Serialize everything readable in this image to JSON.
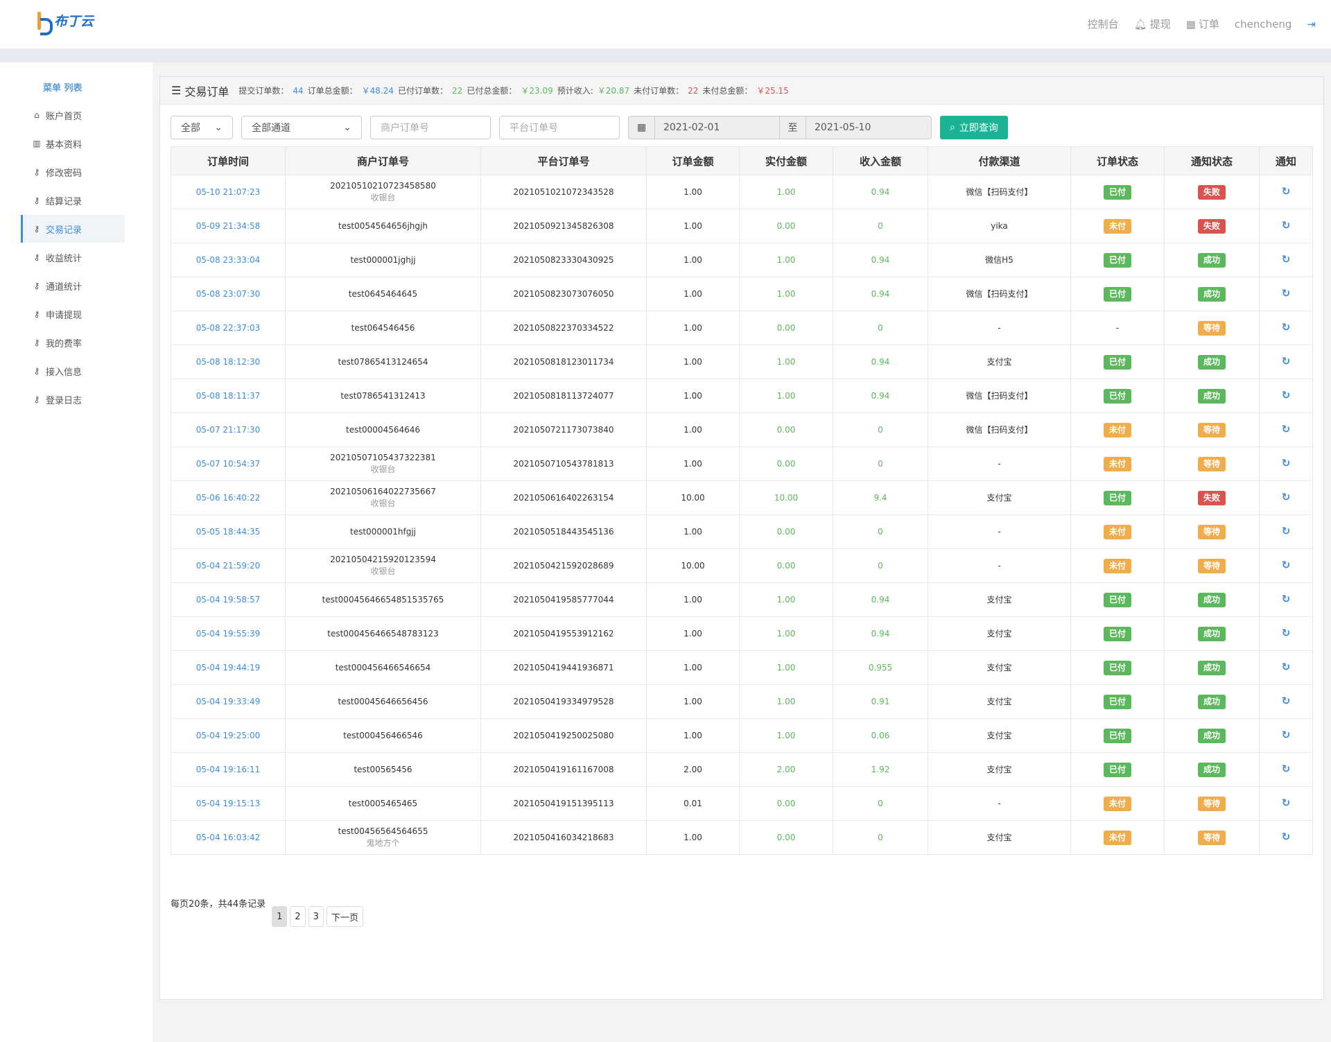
{
  "brand": {
    "name": "布丁云"
  },
  "topnav": [
    {
      "label": "控制台",
      "icon": ""
    },
    {
      "label": "提现",
      "icon": "bell-icon"
    },
    {
      "label": "订单",
      "icon": "calendar-icon"
    },
    {
      "label": "chencheng",
      "icon": ""
    },
    {
      "label": "",
      "icon": "logout-icon"
    }
  ],
  "sidebar": {
    "title": "菜单 列表",
    "items": [
      {
        "label": "账户首页",
        "icon": "home-icon"
      },
      {
        "label": "基本资料",
        "icon": "bar-chart-icon"
      },
      {
        "label": "修改密码",
        "icon": "key-icon"
      },
      {
        "label": "结算记录",
        "icon": "key-icon"
      },
      {
        "label": "交易记录",
        "icon": "key-icon",
        "active": true
      },
      {
        "label": "收益统计",
        "icon": "key-icon"
      },
      {
        "label": "通道统计",
        "icon": "key-icon"
      },
      {
        "label": "申请提现",
        "icon": "key-icon"
      },
      {
        "label": "我的费率",
        "icon": "key-icon"
      },
      {
        "label": "接入信息",
        "icon": "key-icon"
      },
      {
        "label": "登录日志",
        "icon": "key-icon"
      }
    ]
  },
  "panel": {
    "title": "交易订单",
    "stats": {
      "submit_label": "提交订单数：",
      "submit": "44",
      "total_label": "订单总金额：",
      "total": "￥48.24",
      "paid_count_label": "已付订单数：",
      "paid_count": "22",
      "paid_total_label": "已付总金额：",
      "paid_total": "￥23.09",
      "income_label": "预计收入:",
      "income": "￥20.87",
      "unpaid_count_label": "未付订单数：",
      "unpaid_count": "22",
      "unpaid_total_label": "未付总金额：",
      "unpaid_total": "￥25.15"
    }
  },
  "filters": {
    "status": "全部",
    "channel": "全部通道",
    "merchant_placeholder": "商户订单号",
    "platform_placeholder": "平台订单号",
    "date_from": "2021-02-01",
    "to_label": "至",
    "date_to": "2021-05-10",
    "search_label": "立即查询"
  },
  "colors": {
    "accent": "#1ab394",
    "link": "#3c8dde",
    "success": "#5cb85c",
    "warning": "#f0ad4e",
    "danger": "#d9534f"
  },
  "table": {
    "headers": [
      "订单时间",
      "商户订单号",
      "平台订单号",
      "订单金额",
      "实付金额",
      "收入金额",
      "付款渠道",
      "订单状态",
      "通知状态",
      "通知"
    ],
    "rows": [
      [
        "05-10 21:07:23",
        "20210510210723458580",
        "收银台",
        "2021051021072343528",
        "1.00",
        "1.00",
        "0.94",
        "微信【扫码支付】",
        "已付",
        "失败"
      ],
      [
        "05-09 21:34:58",
        "test0054564656jhgjh",
        "",
        "2021050921345826308",
        "1.00",
        "0.00",
        "0",
        "yika",
        "未付",
        "失败"
      ],
      [
        "05-08 23:33:04",
        "test000001jghjj",
        "",
        "2021050823330430925",
        "1.00",
        "1.00",
        "0.94",
        "微信H5",
        "已付",
        "成功"
      ],
      [
        "05-08 23:07:30",
        "test0645464645",
        "",
        "2021050823073076050",
        "1.00",
        "1.00",
        "0.94",
        "微信【扫码支付】",
        "已付",
        "成功"
      ],
      [
        "05-08 22:37:03",
        "test064546456",
        "",
        "2021050822370334522",
        "1.00",
        "0.00",
        "0",
        "-",
        "-",
        "等待"
      ],
      [
        "05-08 18:12:30",
        "test07865413124654",
        "",
        "2021050818123011734",
        "1.00",
        "1.00",
        "0.94",
        "支付宝",
        "已付",
        "成功"
      ],
      [
        "05-08 18:11:37",
        "test0786541312413",
        "",
        "2021050818113724077",
        "1.00",
        "1.00",
        "0.94",
        "微信【扫码支付】",
        "已付",
        "成功"
      ],
      [
        "05-07 21:17:30",
        "test00004564646",
        "",
        "2021050721173073840",
        "1.00",
        "0.00",
        "0",
        "微信【扫码支付】",
        "未付",
        "等待"
      ],
      [
        "05-07 10:54:37",
        "20210507105437322381",
        "收银台",
        "2021050710543781813",
        "1.00",
        "0.00",
        "0",
        "-",
        "未付",
        "等待"
      ],
      [
        "05-06 16:40:22",
        "20210506164022735667",
        "收银台",
        "2021050616402263154",
        "10.00",
        "10.00",
        "9.4",
        "支付宝",
        "已付",
        "失败"
      ],
      [
        "05-05 18:44:35",
        "test000001hfgjj",
        "",
        "2021050518443545136",
        "1.00",
        "0.00",
        "0",
        "-",
        "未付",
        "等待"
      ],
      [
        "05-04 21:59:20",
        "20210504215920123594",
        "收银台",
        "2021050421592028689",
        "10.00",
        "0.00",
        "0",
        "-",
        "未付",
        "等待"
      ],
      [
        "05-04 19:58:57",
        "test00045646654851535765",
        "",
        "2021050419585777044",
        "1.00",
        "1.00",
        "0.94",
        "支付宝",
        "已付",
        "成功"
      ],
      [
        "05-04 19:55:39",
        "test000456466548783123",
        "",
        "2021050419553912162",
        "1.00",
        "1.00",
        "0.94",
        "支付宝",
        "已付",
        "成功"
      ],
      [
        "05-04 19:44:19",
        "test000456466546654",
        "",
        "2021050419441936871",
        "1.00",
        "1.00",
        "0.955",
        "支付宝",
        "已付",
        "成功"
      ],
      [
        "05-04 19:33:49",
        "test00045646656456",
        "",
        "2021050419334979528",
        "1.00",
        "1.00",
        "0.91",
        "支付宝",
        "已付",
        "成功"
      ],
      [
        "05-04 19:25:00",
        "test000456466546",
        "",
        "2021050419250025080",
        "1.00",
        "1.00",
        "0.06",
        "支付宝",
        "已付",
        "成功"
      ],
      [
        "05-04 19:16:11",
        "test00565456",
        "",
        "2021050419161167008",
        "2.00",
        "2.00",
        "1.92",
        "支付宝",
        "已付",
        "成功"
      ],
      [
        "05-04 19:15:13",
        "test0005465465",
        "",
        "2021050419151395113",
        "0.01",
        "0.00",
        "0",
        "-",
        "未付",
        "等待"
      ],
      [
        "05-04 16:03:42",
        "test00456564564655",
        "鬼地方个",
        "2021050416034218683",
        "1.00",
        "0.00",
        "0",
        "支付宝",
        "未付",
        "等待"
      ]
    ]
  },
  "pagination": {
    "info": "每页20条，共44条记录",
    "pages": [
      "1",
      "2",
      "3"
    ],
    "current": "1",
    "next": "下一页"
  }
}
